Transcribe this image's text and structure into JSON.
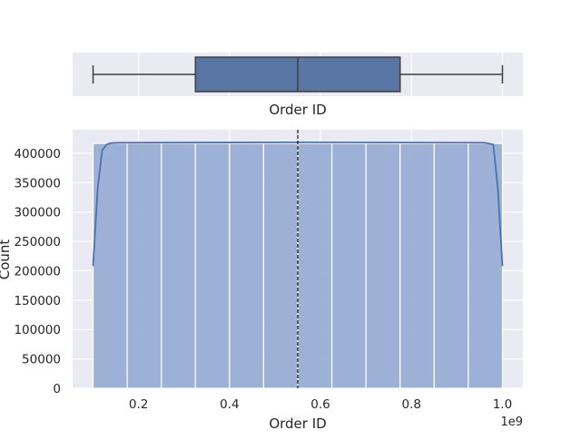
{
  "chart_data": [
    {
      "type": "box",
      "xlabel": "Order ID",
      "xlim": [
        100000000,
        1000000000
      ],
      "stats": {
        "min": 100000000,
        "q1": 325000000,
        "median": 550000000,
        "q3": 775000000,
        "max": 1000000000
      },
      "color": "#5875a4",
      "grid": true
    },
    {
      "type": "histogram",
      "xlabel": "Order ID",
      "ylabel": "Count",
      "x_scale_label": "1e9",
      "x_ticks": [
        0.2,
        0.4,
        0.6,
        0.8,
        1.0
      ],
      "y_ticks": [
        0,
        50000,
        100000,
        150000,
        200000,
        250000,
        300000,
        350000,
        400000
      ],
      "ylim": [
        0,
        440000
      ],
      "xlim": [
        55000000,
        1045000000
      ],
      "bin_edges": [
        100000000,
        175000000,
        250000000,
        325000000,
        400000000,
        475000000,
        550000000,
        625000000,
        700000000,
        775000000,
        850000000,
        925000000,
        1000000000
      ],
      "counts": [
        416700,
        416700,
        416700,
        416700,
        416700,
        416700,
        416700,
        416700,
        416700,
        416700,
        416700,
        416700
      ],
      "kde": {
        "x": [
          100000000,
          110000000,
          120000000,
          130000000,
          140000000,
          160000000,
          550000000,
          960000000,
          980000000,
          990000000,
          1000000000
        ],
        "y": [
          208000,
          340000,
          405000,
          415000,
          417500,
          418000,
          418500,
          418000,
          415000,
          340000,
          208000
        ]
      },
      "mean_line": 550000000,
      "bar_color": "#98aed3",
      "line_color": "#4c72b0",
      "grid": true
    }
  ]
}
